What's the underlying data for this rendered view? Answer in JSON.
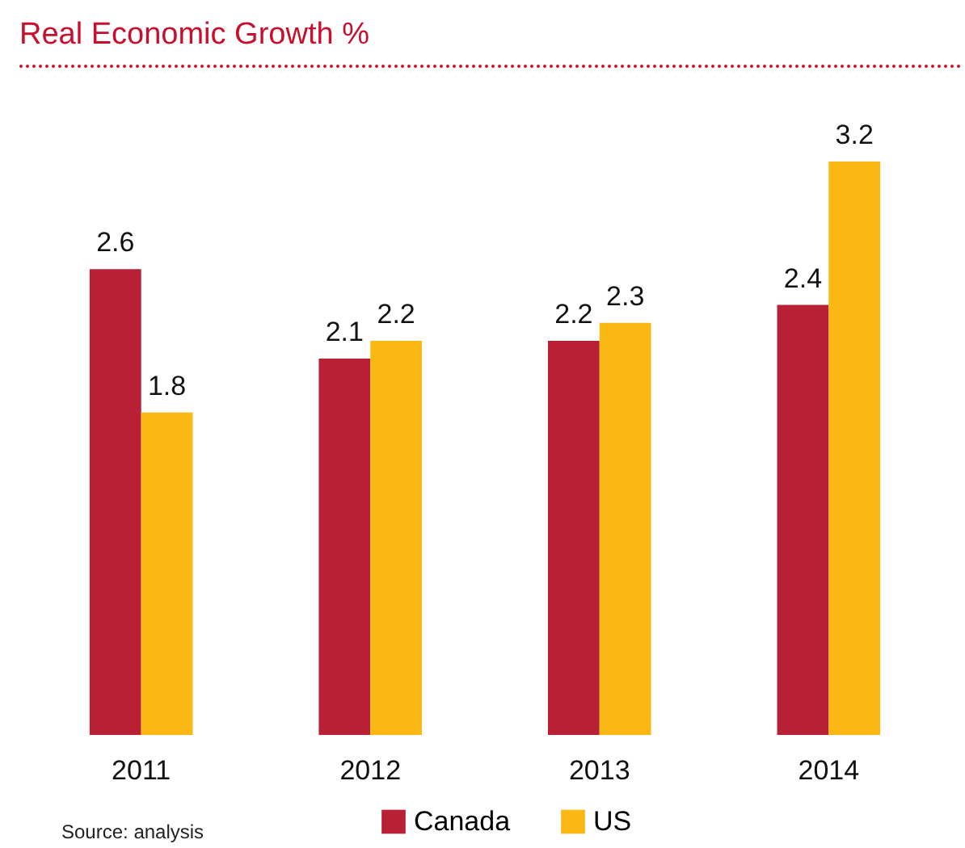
{
  "chart_data": {
    "type": "bar",
    "title": "Real Economic Growth %",
    "categories": [
      "2011",
      "2012",
      "2013",
      "2014"
    ],
    "series": [
      {
        "name": "Canada",
        "color": "#b82035",
        "values": [
          2.6,
          2.1,
          2.2,
          2.4
        ]
      },
      {
        "name": "US",
        "color": "#fbb814",
        "values": [
          1.8,
          2.2,
          2.3,
          3.2
        ]
      }
    ],
    "data_labels": true,
    "legend": "bottom",
    "annotations": [
      "Source: analysis"
    ]
  }
}
